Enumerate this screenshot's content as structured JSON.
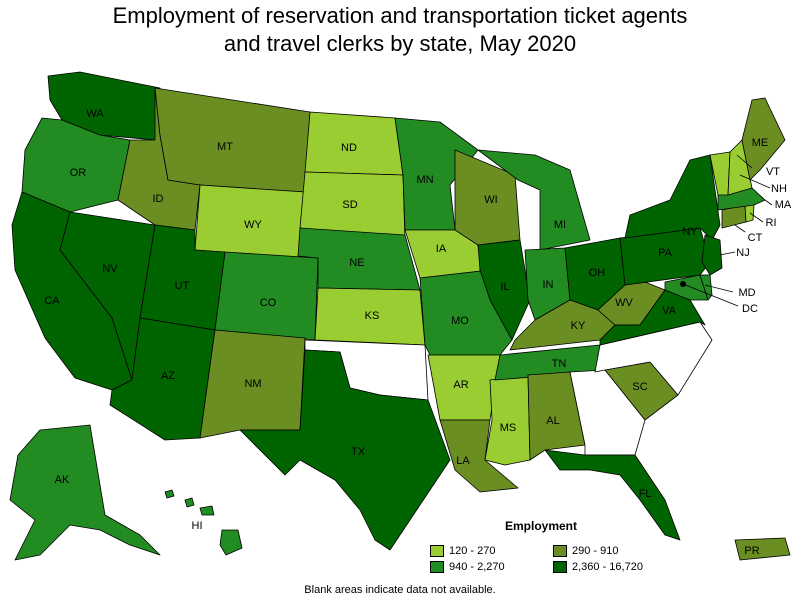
{
  "title_line1": "Employment of reservation and transportation ticket agents",
  "title_line2": "and travel clerks by state, May 2020",
  "legend": {
    "title": "Employment",
    "items": [
      {
        "label": "120 - 270",
        "color": "#9acd32"
      },
      {
        "label": "290 - 910",
        "color": "#6b8e23"
      },
      {
        "label": "940 - 2,270",
        "color": "#228b22"
      },
      {
        "label": "2,360 - 16,720",
        "color": "#006400"
      }
    ]
  },
  "footnote": "Blank areas indicate data not available.",
  "states": {
    "WA": "WA",
    "OR": "OR",
    "CA": "CA",
    "NV": "NV",
    "ID": "ID",
    "MT": "MT",
    "WY": "WY",
    "UT": "UT",
    "AZ": "AZ",
    "CO": "CO",
    "NM": "NM",
    "ND": "ND",
    "SD": "SD",
    "NE": "NE",
    "KS": "KS",
    "TX": "TX",
    "MN": "MN",
    "IA": "IA",
    "MO": "MO",
    "AR": "AR",
    "LA": "LA",
    "WI": "WI",
    "IL": "IL",
    "MS": "MS",
    "MI": "MI",
    "IN": "IN",
    "KY": "KY",
    "TN": "TN",
    "AL": "AL",
    "OH": "OH",
    "WV": "WV",
    "VA": "VA",
    "SC": "SC",
    "FL": "FL",
    "PA": "PA",
    "NY": "NY",
    "NJ": "NJ",
    "MD": "MD",
    "DC": "DC",
    "VT": "VT",
    "NH": "NH",
    "ME": "ME",
    "MA": "MA",
    "RI": "RI",
    "CT": "CT",
    "AK": "AK",
    "HI": "HI",
    "PR": "PR"
  }
}
